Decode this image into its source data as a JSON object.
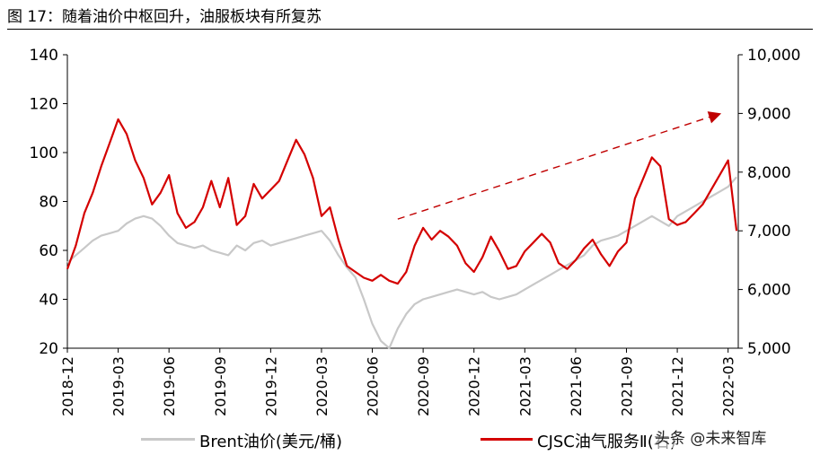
{
  "title": "图 17：随着油价中枢回升，油服板块有所复苏",
  "watermark": "头条 @未来智库",
  "chart_data": {
    "type": "line",
    "x_ticks": [
      "2018-12",
      "2019-03",
      "2019-06",
      "2019-09",
      "2019-12",
      "2020-03",
      "2020-06",
      "2020-09",
      "2020-12",
      "2021-03",
      "2021-06",
      "2021-09",
      "2021-12",
      "2022-03"
    ],
    "x_range": [
      0,
      39.6
    ],
    "ylim_left": [
      20,
      140
    ],
    "yticks_left": [
      20,
      40,
      60,
      80,
      100,
      120,
      140
    ],
    "ytick_labels_left": [
      "20",
      "40",
      "60",
      "80",
      "100",
      "120",
      "140"
    ],
    "ylim_right": [
      5000,
      10000
    ],
    "yticks_right": [
      5000,
      6000,
      7000,
      8000,
      9000,
      10000
    ],
    "ytick_labels_right": [
      "5,000",
      "6,000",
      "7,000",
      "8,000",
      "9,000",
      "10,000"
    ],
    "grid": false,
    "legend_position": "bottom",
    "series": [
      {
        "name": "Brent油价(美元/桶)",
        "axis": "left",
        "color": "#c8c8c8",
        "x": [
          0,
          0.5,
          1,
          1.5,
          2,
          2.5,
          3,
          3.5,
          4,
          4.5,
          5,
          5.5,
          6,
          6.5,
          7,
          7.5,
          8,
          8.5,
          9,
          9.5,
          10,
          10.5,
          11,
          11.5,
          12,
          12.5,
          13,
          13.5,
          14,
          14.5,
          15,
          15.5,
          16,
          16.5,
          17,
          17.5,
          18,
          18.5,
          19,
          19.5,
          20,
          20.5,
          21,
          21.5,
          22,
          22.5,
          23,
          23.5,
          24,
          24.5,
          25,
          25.5,
          26,
          26.5,
          27,
          27.5,
          28,
          28.5,
          29,
          29.5,
          30,
          30.5,
          31,
          31.5,
          32,
          32.5,
          33,
          33.5,
          34,
          34.5,
          35,
          35.5,
          36,
          36.5,
          37,
          37.5,
          38,
          38.5,
          39,
          39.5
        ],
        "values": [
          55,
          58,
          61,
          64,
          66,
          67,
          68,
          71,
          73,
          74,
          73,
          70,
          66,
          63,
          62,
          61,
          62,
          60,
          59,
          58,
          62,
          60,
          63,
          64,
          62,
          63,
          64,
          65,
          66,
          67,
          68,
          64,
          58,
          53,
          49,
          40,
          30,
          23,
          20,
          28,
          34,
          38,
          40,
          41,
          42,
          43,
          44,
          43,
          42,
          43,
          41,
          40,
          41,
          42,
          44,
          46,
          48,
          50,
          52,
          54,
          56,
          58,
          62,
          64,
          65,
          66,
          68,
          70,
          72,
          74,
          72,
          70,
          74,
          76,
          78,
          80,
          82,
          84,
          86,
          90
        ]
      },
      {
        "name": "CJSC油气服务Ⅱ(右)",
        "axis": "right",
        "color": "#d40000",
        "x": [
          0,
          0.5,
          1,
          1.5,
          2,
          2.5,
          3,
          3.5,
          4,
          4.5,
          5,
          5.5,
          6,
          6.5,
          7,
          7.5,
          8,
          8.5,
          9,
          9.5,
          10,
          10.5,
          11,
          11.5,
          12,
          12.5,
          13,
          13.5,
          14,
          14.5,
          15,
          15.5,
          16,
          16.5,
          17,
          17.5,
          18,
          18.5,
          19,
          19.5,
          20,
          20.5,
          21,
          21.5,
          22,
          22.5,
          23,
          23.5,
          24,
          24.5,
          25,
          25.5,
          26,
          26.5,
          27,
          27.5,
          28,
          28.5,
          29,
          29.5,
          30,
          30.5,
          31,
          31.5,
          32,
          32.5,
          33,
          33.5,
          34,
          34.5,
          35,
          35.5,
          36,
          36.5,
          37,
          37.5,
          38,
          38.5,
          39,
          39.5
        ],
        "values": [
          6350,
          6750,
          7300,
          7650,
          8100,
          8500,
          8900,
          8650,
          8200,
          7900,
          7450,
          7650,
          7950,
          7300,
          7050,
          7150,
          7400,
          7850,
          7400,
          7900,
          7100,
          7250,
          7800,
          7550,
          7700,
          7850,
          8200,
          8550,
          8300,
          7900,
          7250,
          7400,
          6850,
          6400,
          6300,
          6200,
          6150,
          6250,
          6150,
          6100,
          6300,
          6750,
          7050,
          6850,
          7000,
          6900,
          6750,
          6450,
          6300,
          6550,
          6900,
          6650,
          6350,
          6400,
          6650,
          6800,
          6950,
          6800,
          6450,
          6350,
          6500,
          6700,
          6850,
          6600,
          6400,
          6650,
          6800,
          7550,
          7900,
          8250,
          8100,
          7200,
          7100,
          7150,
          7300,
          7450,
          7700,
          7950,
          8200,
          7000
        ]
      }
    ],
    "annotation": {
      "type": "dashed-arrow",
      "color": "#c00000",
      "from": {
        "x": 19.5,
        "y_right": 7200
      },
      "to": {
        "x": 38.6,
        "y_right": 9000
      }
    }
  }
}
